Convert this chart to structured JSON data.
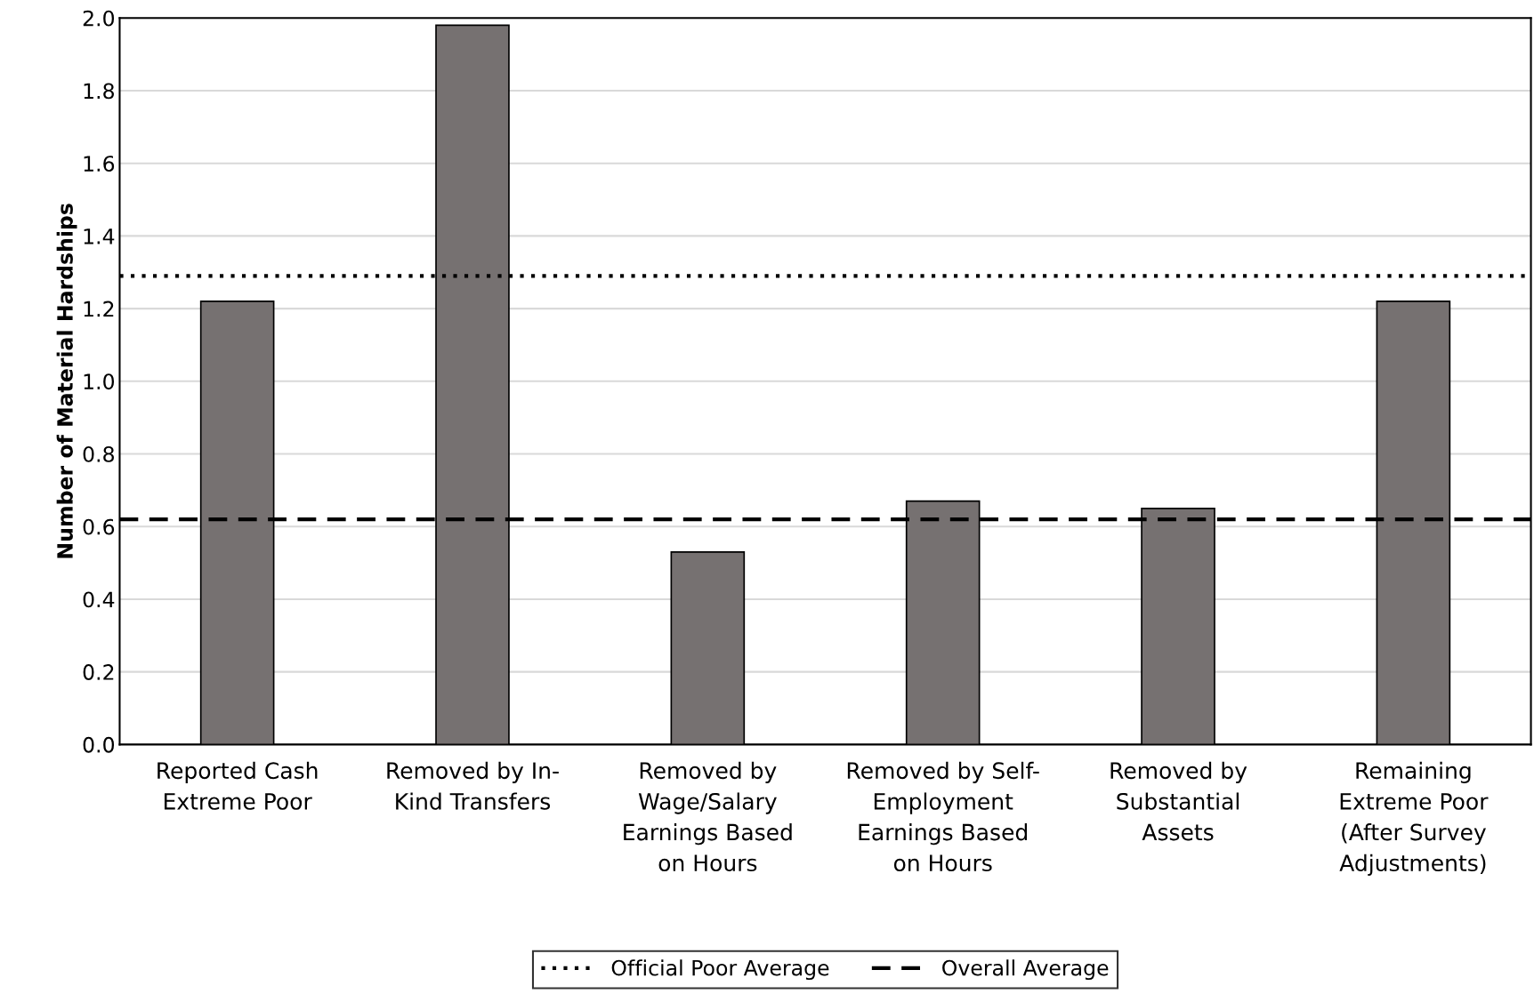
{
  "chart_data": {
    "type": "bar",
    "ylabel": "Number of Material Hardships",
    "categories": [
      "Reported Cash\nExtreme Poor",
      "Removed by In-\nKind Transfers",
      "Removed by\nWage/Salary\nEarnings Based\non Hours",
      "Removed by Self-\nEmployment\nEarnings Based\non Hours",
      "Removed by\nSubstantial\nAssets",
      "Remaining\nExtreme Poor\n(After Survey\nAdjustments)"
    ],
    "values": [
      1.22,
      1.98,
      0.53,
      0.67,
      0.65,
      1.22
    ],
    "color": "#767171",
    "ylim": [
      0,
      2.0
    ],
    "yticks": [
      {
        "value": 0,
        "label": "0.0"
      },
      {
        "value": 0.2,
        "label": "0.2"
      },
      {
        "value": 0.4,
        "label": "0.4"
      },
      {
        "value": 0.6,
        "label": "0.6"
      },
      {
        "value": 0.8,
        "label": "0.8"
      },
      {
        "value": 1.0,
        "label": "1.0"
      },
      {
        "value": 1.2,
        "label": "1.2"
      },
      {
        "value": 1.4,
        "label": "1.4"
      },
      {
        "value": 1.6,
        "label": "1.6"
      },
      {
        "value": 1.8,
        "label": "1.8"
      },
      {
        "value": 2.0,
        "label": "2.0"
      }
    ],
    "grid": "y",
    "ref_lines": [
      {
        "axis": "y",
        "value": 1.29,
        "label": "Official Poor Average",
        "color": "#000000",
        "line_style": "dotted"
      },
      {
        "axis": "y",
        "value": 0.62,
        "label": "Overall Average",
        "color": "#000000",
        "line_style": "dashed"
      }
    ],
    "legend": "bottom"
  }
}
